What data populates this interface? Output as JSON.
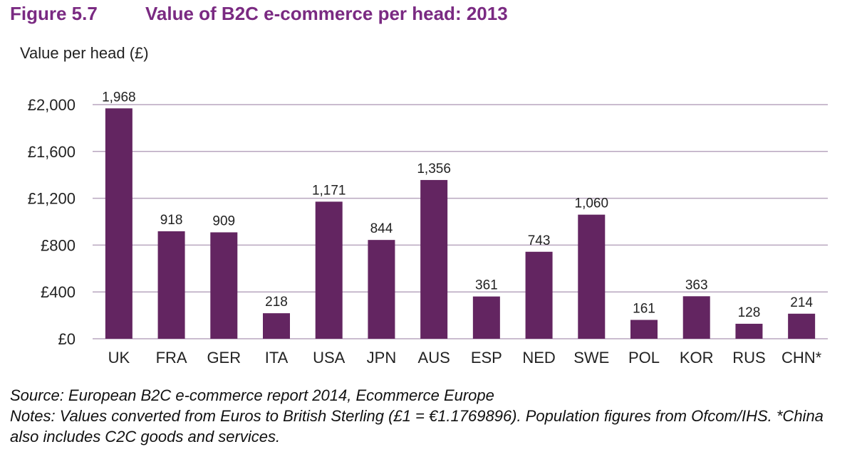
{
  "figure": {
    "number": "Figure 5.7",
    "title": "Value of B2C e-commerce per head: 2013"
  },
  "chart_data": {
    "type": "bar",
    "title": "Value of B2C e-commerce per head: 2013",
    "ylabel": "Value per head (£)",
    "xlabel": "",
    "categories": [
      "UK",
      "FRA",
      "GER",
      "ITA",
      "USA",
      "JPN",
      "AUS",
      "ESP",
      "NED",
      "SWE",
      "POL",
      "KOR",
      "RUS",
      "CHN*"
    ],
    "values": [
      1968,
      918,
      909,
      218,
      1171,
      844,
      1356,
      361,
      743,
      1060,
      161,
      363,
      128,
      214
    ],
    "value_labels": [
      "1,968",
      "918",
      "909",
      "218",
      "1,171",
      "844",
      "1,356",
      "361",
      "743",
      "1,060",
      "161",
      "363",
      "128",
      "214"
    ],
    "ylim": [
      0,
      2000
    ],
    "y_ticks": [
      0,
      400,
      800,
      1200,
      1600,
      2000
    ],
    "y_tick_labels": [
      "£0",
      "£400",
      "£800",
      "£1,200",
      "£1,600",
      "£2,000"
    ],
    "grid": true,
    "bar_color": "#632561",
    "grid_color": "#b8a6bf",
    "title_color": "#7a2a82"
  },
  "notes": {
    "source": "Source: European B2C e-commerce report 2014, Ecommerce Europe",
    "notes_text": "Notes: Values converted from Euros to British Sterling (£1 = €1.1769896). Population figures from Ofcom/IHS. *China also includes C2C goods and services."
  }
}
